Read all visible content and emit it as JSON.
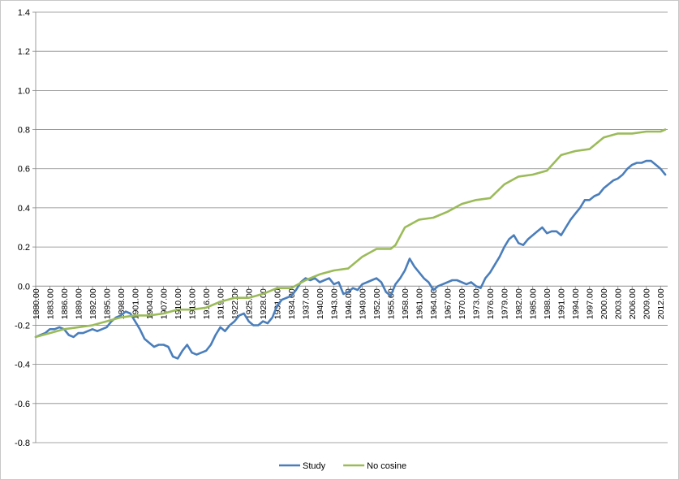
{
  "chart_data": {
    "type": "line",
    "title": "",
    "xlabel": "",
    "ylabel": "",
    "ylim": [
      -0.8,
      1.4
    ],
    "ytick_labels": [
      "1.4",
      "1.2",
      "1.0",
      "0.8",
      "0.6",
      "0.4",
      "0.2",
      "0.0",
      "-0.2",
      "-0.4",
      "-0.6",
      "-0.8"
    ],
    "xtick_labels": [
      "1880.00",
      "1883.00",
      "1886.00",
      "1889.00",
      "1892.00",
      "1895.00",
      "1898.00",
      "1901.00",
      "1904.00",
      "1907.00",
      "1910.00",
      "1913.00",
      "1916.00",
      "1919.00",
      "1922.00",
      "1925.00",
      "1928.00",
      "1931.00",
      "1934.00",
      "1937.00",
      "1940.00",
      "1943.00",
      "1946.00",
      "1949.00",
      "1952.00",
      "1955.00",
      "1958.00",
      "1961.00",
      "1964.00",
      "1967.00",
      "1970.00",
      "1973.00",
      "1976.00",
      "1979.00",
      "1982.00",
      "1985.00",
      "1988.00",
      "1991.00",
      "1994.00",
      "1997.00",
      "2000.00",
      "2003.00",
      "2006.00",
      "2009.00",
      "2012.00"
    ],
    "xlim": [
      1880,
      2013.5
    ],
    "grid": "horizontal",
    "legend_position": "bottom",
    "series": [
      {
        "name": "Study",
        "color": "#4a7ebb",
        "points": [
          [
            1880,
            -0.26
          ],
          [
            1881,
            -0.25
          ],
          [
            1882,
            -0.24
          ],
          [
            1883,
            -0.22
          ],
          [
            1884,
            -0.22
          ],
          [
            1885,
            -0.21
          ],
          [
            1886,
            -0.22
          ],
          [
            1887,
            -0.25
          ],
          [
            1888,
            -0.26
          ],
          [
            1889,
            -0.24
          ],
          [
            1890,
            -0.24
          ],
          [
            1891,
            -0.23
          ],
          [
            1892,
            -0.22
          ],
          [
            1893,
            -0.23
          ],
          [
            1894,
            -0.22
          ],
          [
            1895,
            -0.21
          ],
          [
            1896,
            -0.18
          ],
          [
            1897,
            -0.16
          ],
          [
            1898,
            -0.15
          ],
          [
            1899,
            -0.13
          ],
          [
            1900,
            -0.14
          ],
          [
            1901,
            -0.18
          ],
          [
            1902,
            -0.22
          ],
          [
            1903,
            -0.27
          ],
          [
            1904,
            -0.29
          ],
          [
            1905,
            -0.31
          ],
          [
            1906,
            -0.3
          ],
          [
            1907,
            -0.3
          ],
          [
            1908,
            -0.31
          ],
          [
            1909,
            -0.36
          ],
          [
            1910,
            -0.37
          ],
          [
            1911,
            -0.33
          ],
          [
            1912,
            -0.3
          ],
          [
            1913,
            -0.34
          ],
          [
            1914,
            -0.35
          ],
          [
            1915,
            -0.34
          ],
          [
            1916,
            -0.33
          ],
          [
            1917,
            -0.3
          ],
          [
            1918,
            -0.25
          ],
          [
            1919,
            -0.21
          ],
          [
            1920,
            -0.23
          ],
          [
            1921,
            -0.2
          ],
          [
            1922,
            -0.18
          ],
          [
            1923,
            -0.15
          ],
          [
            1924,
            -0.14
          ],
          [
            1925,
            -0.18
          ],
          [
            1926,
            -0.2
          ],
          [
            1927,
            -0.2
          ],
          [
            1928,
            -0.18
          ],
          [
            1929,
            -0.19
          ],
          [
            1930,
            -0.16
          ],
          [
            1931,
            -0.1
          ],
          [
            1932,
            -0.07
          ],
          [
            1933,
            -0.06
          ],
          [
            1934,
            -0.05
          ],
          [
            1935,
            -0.02
          ],
          [
            1936,
            0.02
          ],
          [
            1937,
            0.04
          ],
          [
            1938,
            0.03
          ],
          [
            1939,
            0.04
          ],
          [
            1940,
            0.02
          ],
          [
            1941,
            0.03
          ],
          [
            1942,
            0.04
          ],
          [
            1943,
            0.01
          ],
          [
            1944,
            0.02
          ],
          [
            1945,
            -0.04
          ],
          [
            1946,
            -0.03
          ],
          [
            1947,
            -0.01
          ],
          [
            1948,
            -0.02
          ],
          [
            1949,
            0.01
          ],
          [
            1950,
            0.02
          ],
          [
            1951,
            0.03
          ],
          [
            1952,
            0.04
          ],
          [
            1953,
            0.02
          ],
          [
            1954,
            -0.03
          ],
          [
            1955,
            -0.05
          ],
          [
            1956,
            0.01
          ],
          [
            1957,
            0.04
          ],
          [
            1958,
            0.08
          ],
          [
            1959,
            0.14
          ],
          [
            1960,
            0.1
          ],
          [
            1961,
            0.07
          ],
          [
            1962,
            0.04
          ],
          [
            1963,
            0.02
          ],
          [
            1964,
            -0.02
          ],
          [
            1965,
            0.0
          ],
          [
            1966,
            0.01
          ],
          [
            1967,
            0.02
          ],
          [
            1968,
            0.03
          ],
          [
            1969,
            0.03
          ],
          [
            1970,
            0.02
          ],
          [
            1971,
            0.01
          ],
          [
            1972,
            0.02
          ],
          [
            1973,
            0.0
          ],
          [
            1974,
            -0.01
          ],
          [
            1975,
            0.04
          ],
          [
            1976,
            0.07
          ],
          [
            1977,
            0.11
          ],
          [
            1978,
            0.15
          ],
          [
            1979,
            0.2
          ],
          [
            1980,
            0.24
          ],
          [
            1981,
            0.26
          ],
          [
            1982,
            0.22
          ],
          [
            1983,
            0.21
          ],
          [
            1984,
            0.24
          ],
          [
            1985,
            0.26
          ],
          [
            1986,
            0.28
          ],
          [
            1987,
            0.3
          ],
          [
            1988,
            0.27
          ],
          [
            1989,
            0.28
          ],
          [
            1990,
            0.28
          ],
          [
            1991,
            0.26
          ],
          [
            1992,
            0.3
          ],
          [
            1993,
            0.34
          ],
          [
            1994,
            0.37
          ],
          [
            1995,
            0.4
          ],
          [
            1996,
            0.44
          ],
          [
            1997,
            0.44
          ],
          [
            1998,
            0.46
          ],
          [
            1999,
            0.47
          ],
          [
            2000,
            0.5
          ],
          [
            2001,
            0.52
          ],
          [
            2002,
            0.54
          ],
          [
            2003,
            0.55
          ],
          [
            2004,
            0.57
          ],
          [
            2005,
            0.6
          ],
          [
            2006,
            0.62
          ],
          [
            2007,
            0.63
          ],
          [
            2008,
            0.63
          ],
          [
            2009,
            0.64
          ],
          [
            2010,
            0.64
          ],
          [
            2011,
            0.62
          ],
          [
            2012,
            0.6
          ],
          [
            2013,
            0.57
          ]
        ]
      },
      {
        "name": "No cosine",
        "color": "#9bbb59",
        "points": [
          [
            1880,
            -0.26
          ],
          [
            1883,
            -0.24
          ],
          [
            1886,
            -0.22
          ],
          [
            1889,
            -0.21
          ],
          [
            1892,
            -0.2
          ],
          [
            1895,
            -0.18
          ],
          [
            1898,
            -0.16
          ],
          [
            1901,
            -0.15
          ],
          [
            1904,
            -0.15
          ],
          [
            1907,
            -0.14
          ],
          [
            1910,
            -0.12
          ],
          [
            1913,
            -0.12
          ],
          [
            1916,
            -0.11
          ],
          [
            1919,
            -0.08
          ],
          [
            1922,
            -0.06
          ],
          [
            1925,
            -0.06
          ],
          [
            1928,
            -0.04
          ],
          [
            1931,
            -0.01
          ],
          [
            1934,
            -0.01
          ],
          [
            1937,
            0.03
          ],
          [
            1940,
            0.06
          ],
          [
            1943,
            0.08
          ],
          [
            1946,
            0.09
          ],
          [
            1949,
            0.15
          ],
          [
            1952,
            0.19
          ],
          [
            1955,
            0.19
          ],
          [
            1956,
            0.21
          ],
          [
            1958,
            0.3
          ],
          [
            1961,
            0.34
          ],
          [
            1964,
            0.35
          ],
          [
            1967,
            0.38
          ],
          [
            1970,
            0.42
          ],
          [
            1973,
            0.44
          ],
          [
            1976,
            0.45
          ],
          [
            1979,
            0.52
          ],
          [
            1982,
            0.56
          ],
          [
            1985,
            0.57
          ],
          [
            1988,
            0.59
          ],
          [
            1991,
            0.67
          ],
          [
            1994,
            0.69
          ],
          [
            1997,
            0.7
          ],
          [
            2000,
            0.76
          ],
          [
            2003,
            0.78
          ],
          [
            2006,
            0.78
          ],
          [
            2009,
            0.79
          ],
          [
            2012,
            0.79
          ],
          [
            2013,
            0.8
          ]
        ]
      }
    ]
  }
}
